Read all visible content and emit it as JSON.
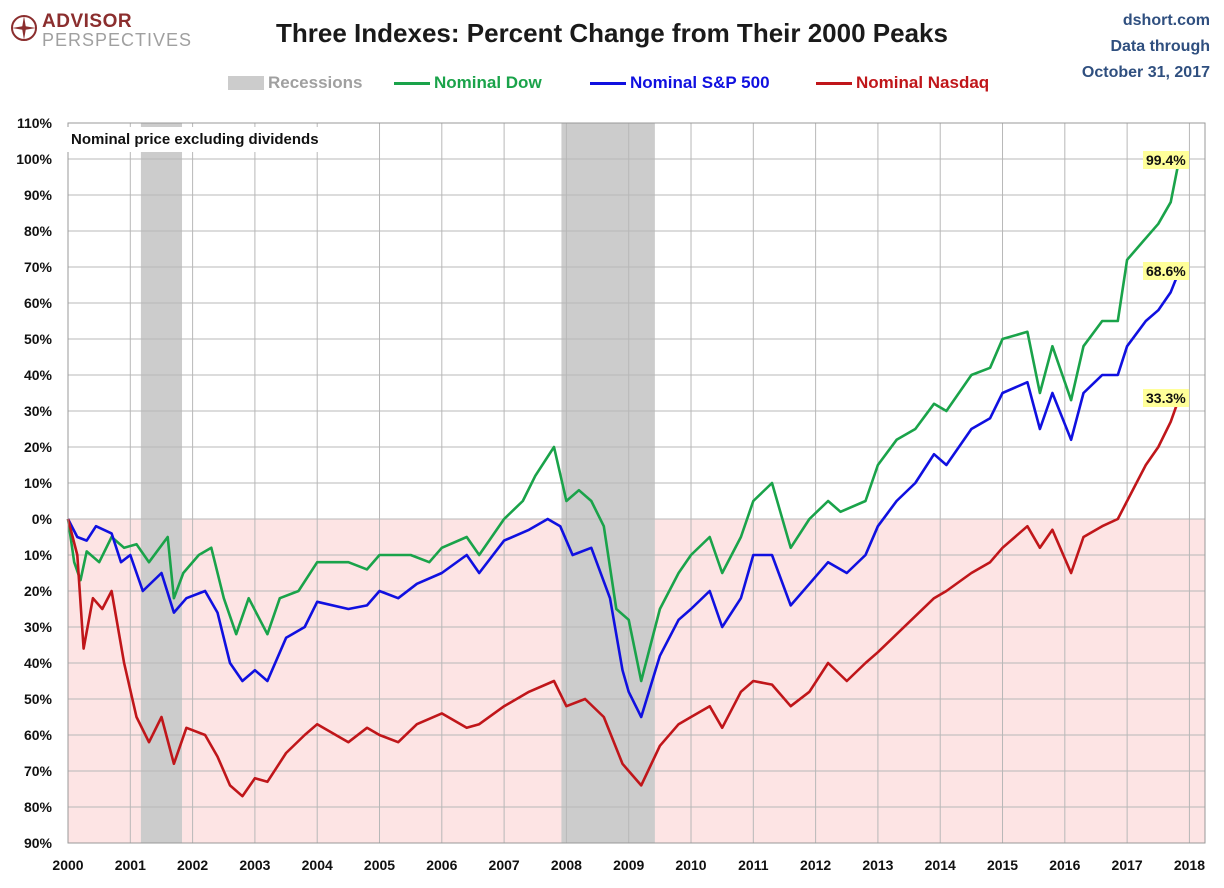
{
  "header": {
    "logo_line1": "ADVISOR",
    "logo_line2": "PERSPECTIVES",
    "title": "Three Indexes: Percent Change from Their 2000 Peaks",
    "source_line1": "dshort.com",
    "source_line2": "Data through",
    "source_line3": "October 31, 2017"
  },
  "colors": {
    "dow": "#1aa34a",
    "sp500": "#1010e0",
    "nasdaq": "#c0161a",
    "recession": "#cccccc",
    "negative_zone": "#fde4e4",
    "grid": "#b8b8b8"
  },
  "chart_data": {
    "type": "line",
    "title": "Three Indexes: Percent Change from Their 2000 Peaks",
    "annotation": "Nominal price excluding dividends",
    "xlim": [
      2000,
      2018.25
    ],
    "ylim": [
      -90,
      110
    ],
    "y_ticks": [
      110,
      100,
      90,
      80,
      70,
      60,
      50,
      40,
      30,
      20,
      10,
      0,
      -10,
      -20,
      -30,
      -40,
      -50,
      -60,
      -70,
      -80,
      -90
    ],
    "y_tick_labels": [
      "110%",
      "100%",
      "90%",
      "80%",
      "70%",
      "60%",
      "50%",
      "40%",
      "30%",
      "20%",
      "10%",
      "0%",
      "10%",
      "20%",
      "30%",
      "40%",
      "50%",
      "60%",
      "70%",
      "80%",
      "90%"
    ],
    "x_ticks": [
      2000,
      2001,
      2002,
      2003,
      2004,
      2005,
      2006,
      2007,
      2008,
      2009,
      2010,
      2011,
      2012,
      2013,
      2014,
      2015,
      2016,
      2017,
      2018
    ],
    "x_tick_labels": [
      "2000",
      "2001",
      "2002",
      "2003",
      "2004",
      "2005",
      "2006",
      "2007",
      "2008",
      "2009",
      "2010",
      "2011",
      "2012",
      "2013",
      "2014",
      "2015",
      "2016",
      "2017",
      "2018"
    ],
    "grid": true,
    "legend_position": "top",
    "recessions": [
      {
        "start": 2001.17,
        "end": 2001.83,
        "label": "Recessions"
      },
      {
        "start": 2007.92,
        "end": 2009.42
      }
    ],
    "series": [
      {
        "name": "Nominal Dow",
        "end_label": "99.4%",
        "points": [
          [
            2000.0,
            0
          ],
          [
            2000.1,
            -12
          ],
          [
            2000.2,
            -17
          ],
          [
            2000.3,
            -9
          ],
          [
            2000.5,
            -12
          ],
          [
            2000.7,
            -5
          ],
          [
            2000.9,
            -8
          ],
          [
            2001.1,
            -7
          ],
          [
            2001.3,
            -12
          ],
          [
            2001.6,
            -5
          ],
          [
            2001.7,
            -22
          ],
          [
            2001.85,
            -15
          ],
          [
            2002.1,
            -10
          ],
          [
            2002.3,
            -8
          ],
          [
            2002.5,
            -22
          ],
          [
            2002.7,
            -32
          ],
          [
            2002.9,
            -22
          ],
          [
            2003.2,
            -32
          ],
          [
            2003.4,
            -22
          ],
          [
            2003.7,
            -20
          ],
          [
            2004.0,
            -12
          ],
          [
            2004.5,
            -12
          ],
          [
            2004.8,
            -14
          ],
          [
            2005.0,
            -10
          ],
          [
            2005.5,
            -10
          ],
          [
            2005.8,
            -12
          ],
          [
            2006.0,
            -8
          ],
          [
            2006.4,
            -5
          ],
          [
            2006.6,
            -10
          ],
          [
            2007.0,
            0
          ],
          [
            2007.3,
            5
          ],
          [
            2007.5,
            12
          ],
          [
            2007.8,
            20
          ],
          [
            2008.0,
            5
          ],
          [
            2008.2,
            8
          ],
          [
            2008.4,
            5
          ],
          [
            2008.6,
            -2
          ],
          [
            2008.8,
            -25
          ],
          [
            2009.0,
            -28
          ],
          [
            2009.2,
            -45
          ],
          [
            2009.5,
            -25
          ],
          [
            2009.8,
            -15
          ],
          [
            2010.0,
            -10
          ],
          [
            2010.3,
            -5
          ],
          [
            2010.5,
            -15
          ],
          [
            2010.8,
            -5
          ],
          [
            2011.0,
            5
          ],
          [
            2011.3,
            10
          ],
          [
            2011.6,
            -8
          ],
          [
            2011.9,
            0
          ],
          [
            2012.2,
            5
          ],
          [
            2012.4,
            2
          ],
          [
            2012.8,
            5
          ],
          [
            2013.0,
            15
          ],
          [
            2013.3,
            22
          ],
          [
            2013.6,
            25
          ],
          [
            2013.9,
            32
          ],
          [
            2014.1,
            30
          ],
          [
            2014.5,
            40
          ],
          [
            2014.8,
            42
          ],
          [
            2015.0,
            50
          ],
          [
            2015.4,
            52
          ],
          [
            2015.6,
            35
          ],
          [
            2015.8,
            48
          ],
          [
            2016.1,
            33
          ],
          [
            2016.3,
            48
          ],
          [
            2016.6,
            55
          ],
          [
            2016.85,
            55
          ],
          [
            2017.0,
            72
          ],
          [
            2017.3,
            78
          ],
          [
            2017.5,
            82
          ],
          [
            2017.7,
            88
          ],
          [
            2017.83,
            99.4
          ]
        ]
      },
      {
        "name": "Nominal S&P 500",
        "end_label": "68.6%",
        "points": [
          [
            2000.0,
            0
          ],
          [
            2000.15,
            -5
          ],
          [
            2000.3,
            -6
          ],
          [
            2000.45,
            -2
          ],
          [
            2000.7,
            -4
          ],
          [
            2000.85,
            -12
          ],
          [
            2001.0,
            -10
          ],
          [
            2001.2,
            -20
          ],
          [
            2001.5,
            -15
          ],
          [
            2001.7,
            -26
          ],
          [
            2001.9,
            -22
          ],
          [
            2002.2,
            -20
          ],
          [
            2002.4,
            -26
          ],
          [
            2002.6,
            -40
          ],
          [
            2002.8,
            -45
          ],
          [
            2003.0,
            -42
          ],
          [
            2003.2,
            -45
          ],
          [
            2003.5,
            -33
          ],
          [
            2003.8,
            -30
          ],
          [
            2004.0,
            -23
          ],
          [
            2004.5,
            -25
          ],
          [
            2004.8,
            -24
          ],
          [
            2005.0,
            -20
          ],
          [
            2005.3,
            -22
          ],
          [
            2005.6,
            -18
          ],
          [
            2006.0,
            -15
          ],
          [
            2006.4,
            -10
          ],
          [
            2006.6,
            -15
          ],
          [
            2007.0,
            -6
          ],
          [
            2007.4,
            -3
          ],
          [
            2007.7,
            0
          ],
          [
            2007.9,
            -2
          ],
          [
            2008.1,
            -10
          ],
          [
            2008.4,
            -8
          ],
          [
            2008.7,
            -22
          ],
          [
            2008.9,
            -42
          ],
          [
            2009.0,
            -48
          ],
          [
            2009.2,
            -55
          ],
          [
            2009.5,
            -38
          ],
          [
            2009.8,
            -28
          ],
          [
            2010.0,
            -25
          ],
          [
            2010.3,
            -20
          ],
          [
            2010.5,
            -30
          ],
          [
            2010.8,
            -22
          ],
          [
            2011.0,
            -10
          ],
          [
            2011.3,
            -10
          ],
          [
            2011.6,
            -24
          ],
          [
            2011.9,
            -18
          ],
          [
            2012.2,
            -12
          ],
          [
            2012.5,
            -15
          ],
          [
            2012.8,
            -10
          ],
          [
            2013.0,
            -2
          ],
          [
            2013.3,
            5
          ],
          [
            2013.6,
            10
          ],
          [
            2013.9,
            18
          ],
          [
            2014.1,
            15
          ],
          [
            2014.5,
            25
          ],
          [
            2014.8,
            28
          ],
          [
            2015.0,
            35
          ],
          [
            2015.4,
            38
          ],
          [
            2015.6,
            25
          ],
          [
            2015.8,
            35
          ],
          [
            2016.1,
            22
          ],
          [
            2016.3,
            35
          ],
          [
            2016.6,
            40
          ],
          [
            2016.85,
            40
          ],
          [
            2017.0,
            48
          ],
          [
            2017.3,
            55
          ],
          [
            2017.5,
            58
          ],
          [
            2017.7,
            63
          ],
          [
            2017.83,
            68.6
          ]
        ]
      },
      {
        "name": "Nominal Nasdaq",
        "end_label": "33.3%",
        "points": [
          [
            2000.0,
            0
          ],
          [
            2000.15,
            -10
          ],
          [
            2000.25,
            -36
          ],
          [
            2000.4,
            -22
          ],
          [
            2000.55,
            -25
          ],
          [
            2000.7,
            -20
          ],
          [
            2000.9,
            -40
          ],
          [
            2001.1,
            -55
          ],
          [
            2001.3,
            -62
          ],
          [
            2001.5,
            -55
          ],
          [
            2001.7,
            -68
          ],
          [
            2001.9,
            -58
          ],
          [
            2002.2,
            -60
          ],
          [
            2002.4,
            -66
          ],
          [
            2002.6,
            -74
          ],
          [
            2002.8,
            -77
          ],
          [
            2003.0,
            -72
          ],
          [
            2003.2,
            -73
          ],
          [
            2003.5,
            -65
          ],
          [
            2003.8,
            -60
          ],
          [
            2004.0,
            -57
          ],
          [
            2004.5,
            -62
          ],
          [
            2004.8,
            -58
          ],
          [
            2005.0,
            -60
          ],
          [
            2005.3,
            -62
          ],
          [
            2005.6,
            -57
          ],
          [
            2006.0,
            -54
          ],
          [
            2006.4,
            -58
          ],
          [
            2006.6,
            -57
          ],
          [
            2007.0,
            -52
          ],
          [
            2007.4,
            -48
          ],
          [
            2007.8,
            -45
          ],
          [
            2008.0,
            -52
          ],
          [
            2008.3,
            -50
          ],
          [
            2008.6,
            -55
          ],
          [
            2008.9,
            -68
          ],
          [
            2009.0,
            -70
          ],
          [
            2009.2,
            -74
          ],
          [
            2009.5,
            -63
          ],
          [
            2009.8,
            -57
          ],
          [
            2010.0,
            -55
          ],
          [
            2010.3,
            -52
          ],
          [
            2010.5,
            -58
          ],
          [
            2010.8,
            -48
          ],
          [
            2011.0,
            -45
          ],
          [
            2011.3,
            -46
          ],
          [
            2011.6,
            -52
          ],
          [
            2011.9,
            -48
          ],
          [
            2012.2,
            -40
          ],
          [
            2012.5,
            -45
          ],
          [
            2012.8,
            -40
          ],
          [
            2013.0,
            -37
          ],
          [
            2013.3,
            -32
          ],
          [
            2013.6,
            -27
          ],
          [
            2013.9,
            -22
          ],
          [
            2014.1,
            -20
          ],
          [
            2014.5,
            -15
          ],
          [
            2014.8,
            -12
          ],
          [
            2015.0,
            -8
          ],
          [
            2015.4,
            -2
          ],
          [
            2015.6,
            -8
          ],
          [
            2015.8,
            -3
          ],
          [
            2016.1,
            -15
          ],
          [
            2016.3,
            -5
          ],
          [
            2016.6,
            -2
          ],
          [
            2016.85,
            0
          ],
          [
            2017.0,
            5
          ],
          [
            2017.3,
            15
          ],
          [
            2017.5,
            20
          ],
          [
            2017.7,
            27
          ],
          [
            2017.83,
            33.3
          ]
        ]
      }
    ]
  }
}
